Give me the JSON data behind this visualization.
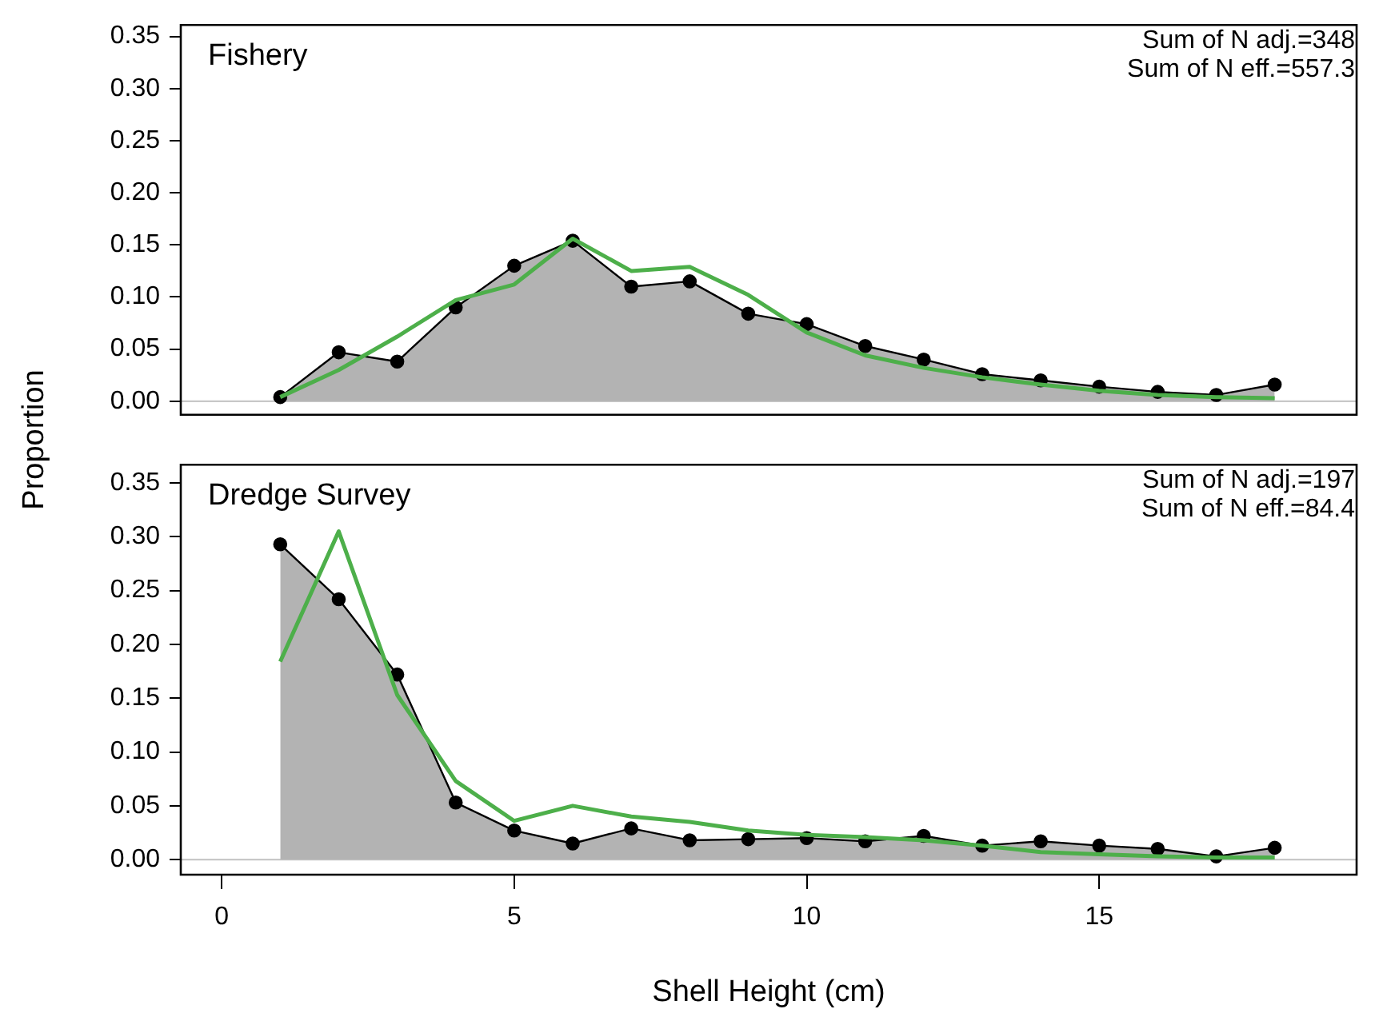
{
  "chart_data": [
    {
      "type": "area",
      "title": "Fishery",
      "annotations": [
        "Sum of N adj.=348",
        "Sum of N eff.=557.3"
      ],
      "x": [
        1,
        2,
        3,
        4,
        5,
        6,
        7,
        8,
        9,
        10,
        11,
        12,
        13,
        14,
        15,
        16,
        17,
        18
      ],
      "series": [
        {
          "type": "area",
          "color": "#b3b3b3",
          "marker": "circle",
          "values": [
            0.004,
            0.047,
            0.038,
            0.09,
            0.13,
            0.154,
            0.11,
            0.115,
            0.084,
            0.074,
            0.053,
            0.04,
            0.026,
            0.02,
            0.014,
            0.009,
            0.006,
            0.016
          ]
        },
        {
          "type": "line",
          "color": "#4daf4a",
          "marker": "none",
          "values": [
            0.004,
            0.03,
            0.062,
            0.097,
            0.112,
            0.156,
            0.125,
            0.129,
            0.102,
            0.066,
            0.044,
            0.032,
            0.023,
            0.016,
            0.01,
            0.006,
            0.004,
            0.003
          ]
        }
      ],
      "xlim": [
        -0.7,
        19.4
      ],
      "xticks": [
        0,
        5,
        10,
        15
      ],
      "ylim": [
        -0.013,
        0.361
      ],
      "yticks": [
        {
          "value": 0,
          "label": "0.00"
        },
        0.05,
        {
          "value": 0.1,
          "label": "0.10"
        },
        0.15,
        {
          "value": 0.2,
          "label": "0.20"
        },
        0.25,
        {
          "value": 0.3,
          "label": "0.30"
        },
        0.35
      ],
      "ref_lines": [
        {
          "axis": "y",
          "value": 0,
          "color": "#c8c8c8"
        }
      ],
      "tick_labels": "y",
      "grid": false,
      "legend": false
    },
    {
      "type": "area",
      "title": "Dredge Survey",
      "ylabel": "Proportion",
      "xlabel": "Shell Height (cm)",
      "annotations": [
        "Sum of N adj.=197",
        "Sum of N eff.=84.4"
      ],
      "x": [
        1,
        2,
        3,
        4,
        5,
        6,
        7,
        8,
        9,
        10,
        11,
        12,
        13,
        14,
        15,
        16,
        17,
        18
      ],
      "series": [
        {
          "type": "area",
          "color": "#b3b3b3",
          "marker": "circle",
          "values": [
            0.293,
            0.242,
            0.172,
            0.053,
            0.027,
            0.015,
            0.029,
            0.018,
            0.019,
            0.02,
            0.017,
            0.022,
            0.013,
            0.017,
            0.013,
            0.01,
            0.003,
            0.011
          ]
        },
        {
          "type": "line",
          "color": "#4daf4a",
          "marker": "none",
          "values": [
            0.184,
            0.305,
            0.153,
            0.073,
            0.036,
            0.05,
            0.04,
            0.035,
            0.027,
            0.023,
            0.021,
            0.018,
            0.013,
            0.007,
            0.005,
            0.003,
            0.002,
            0.002
          ]
        }
      ],
      "xlim": [
        -0.7,
        19.4
      ],
      "xticks": [
        0,
        5,
        10,
        15
      ],
      "ylim": [
        -0.014,
        0.367
      ],
      "yticks": [
        {
          "value": 0,
          "label": "0.00"
        },
        0.05,
        {
          "value": 0.1,
          "label": "0.10"
        },
        0.15,
        {
          "value": 0.2,
          "label": "0.20"
        },
        0.25,
        {
          "value": 0.3,
          "label": "0.30"
        },
        0.35
      ],
      "ref_lines": [
        {
          "axis": "y",
          "value": 0,
          "color": "#c8c8c8"
        }
      ],
      "grid": false,
      "legend": false
    }
  ]
}
